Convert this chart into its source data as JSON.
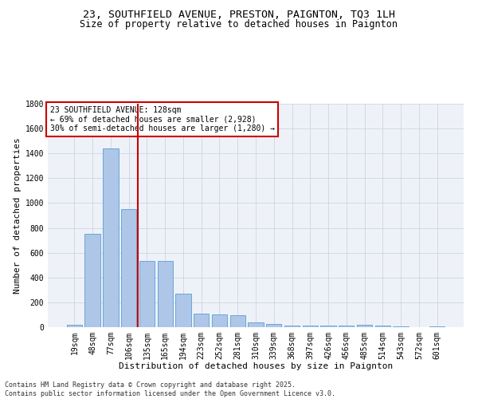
{
  "title": "23, SOUTHFIELD AVENUE, PRESTON, PAIGNTON, TQ3 1LH",
  "subtitle": "Size of property relative to detached houses in Paignton",
  "xlabel": "Distribution of detached houses by size in Paignton",
  "ylabel": "Number of detached properties",
  "categories": [
    "19sqm",
    "48sqm",
    "77sqm",
    "106sqm",
    "135sqm",
    "165sqm",
    "194sqm",
    "223sqm",
    "252sqm",
    "281sqm",
    "310sqm",
    "339sqm",
    "368sqm",
    "397sqm",
    "426sqm",
    "456sqm",
    "485sqm",
    "514sqm",
    "543sqm",
    "572sqm",
    "601sqm"
  ],
  "values": [
    20,
    750,
    1440,
    950,
    535,
    535,
    270,
    110,
    105,
    95,
    40,
    28,
    15,
    13,
    13,
    13,
    18,
    13,
    8,
    0,
    8
  ],
  "bar_color": "#aec6e8",
  "bar_edge_color": "#5a9fd4",
  "grid_color": "#d0d8e8",
  "bg_color": "#eef2f8",
  "vline_color": "#cc0000",
  "vline_x": 3.5,
  "annotation_text": "23 SOUTHFIELD AVENUE: 128sqm\n← 69% of detached houses are smaller (2,928)\n30% of semi-detached houses are larger (1,280) →",
  "annotation_box_color": "#cc0000",
  "ylim": [
    0,
    1800
  ],
  "yticks": [
    0,
    200,
    400,
    600,
    800,
    1000,
    1200,
    1400,
    1600,
    1800
  ],
  "footer_line1": "Contains HM Land Registry data © Crown copyright and database right 2025.",
  "footer_line2": "Contains public sector information licensed under the Open Government Licence v3.0.",
  "title_fontsize": 9.5,
  "subtitle_fontsize": 8.5,
  "axis_label_fontsize": 8,
  "tick_fontsize": 7,
  "annotation_fontsize": 7,
  "footer_fontsize": 6
}
